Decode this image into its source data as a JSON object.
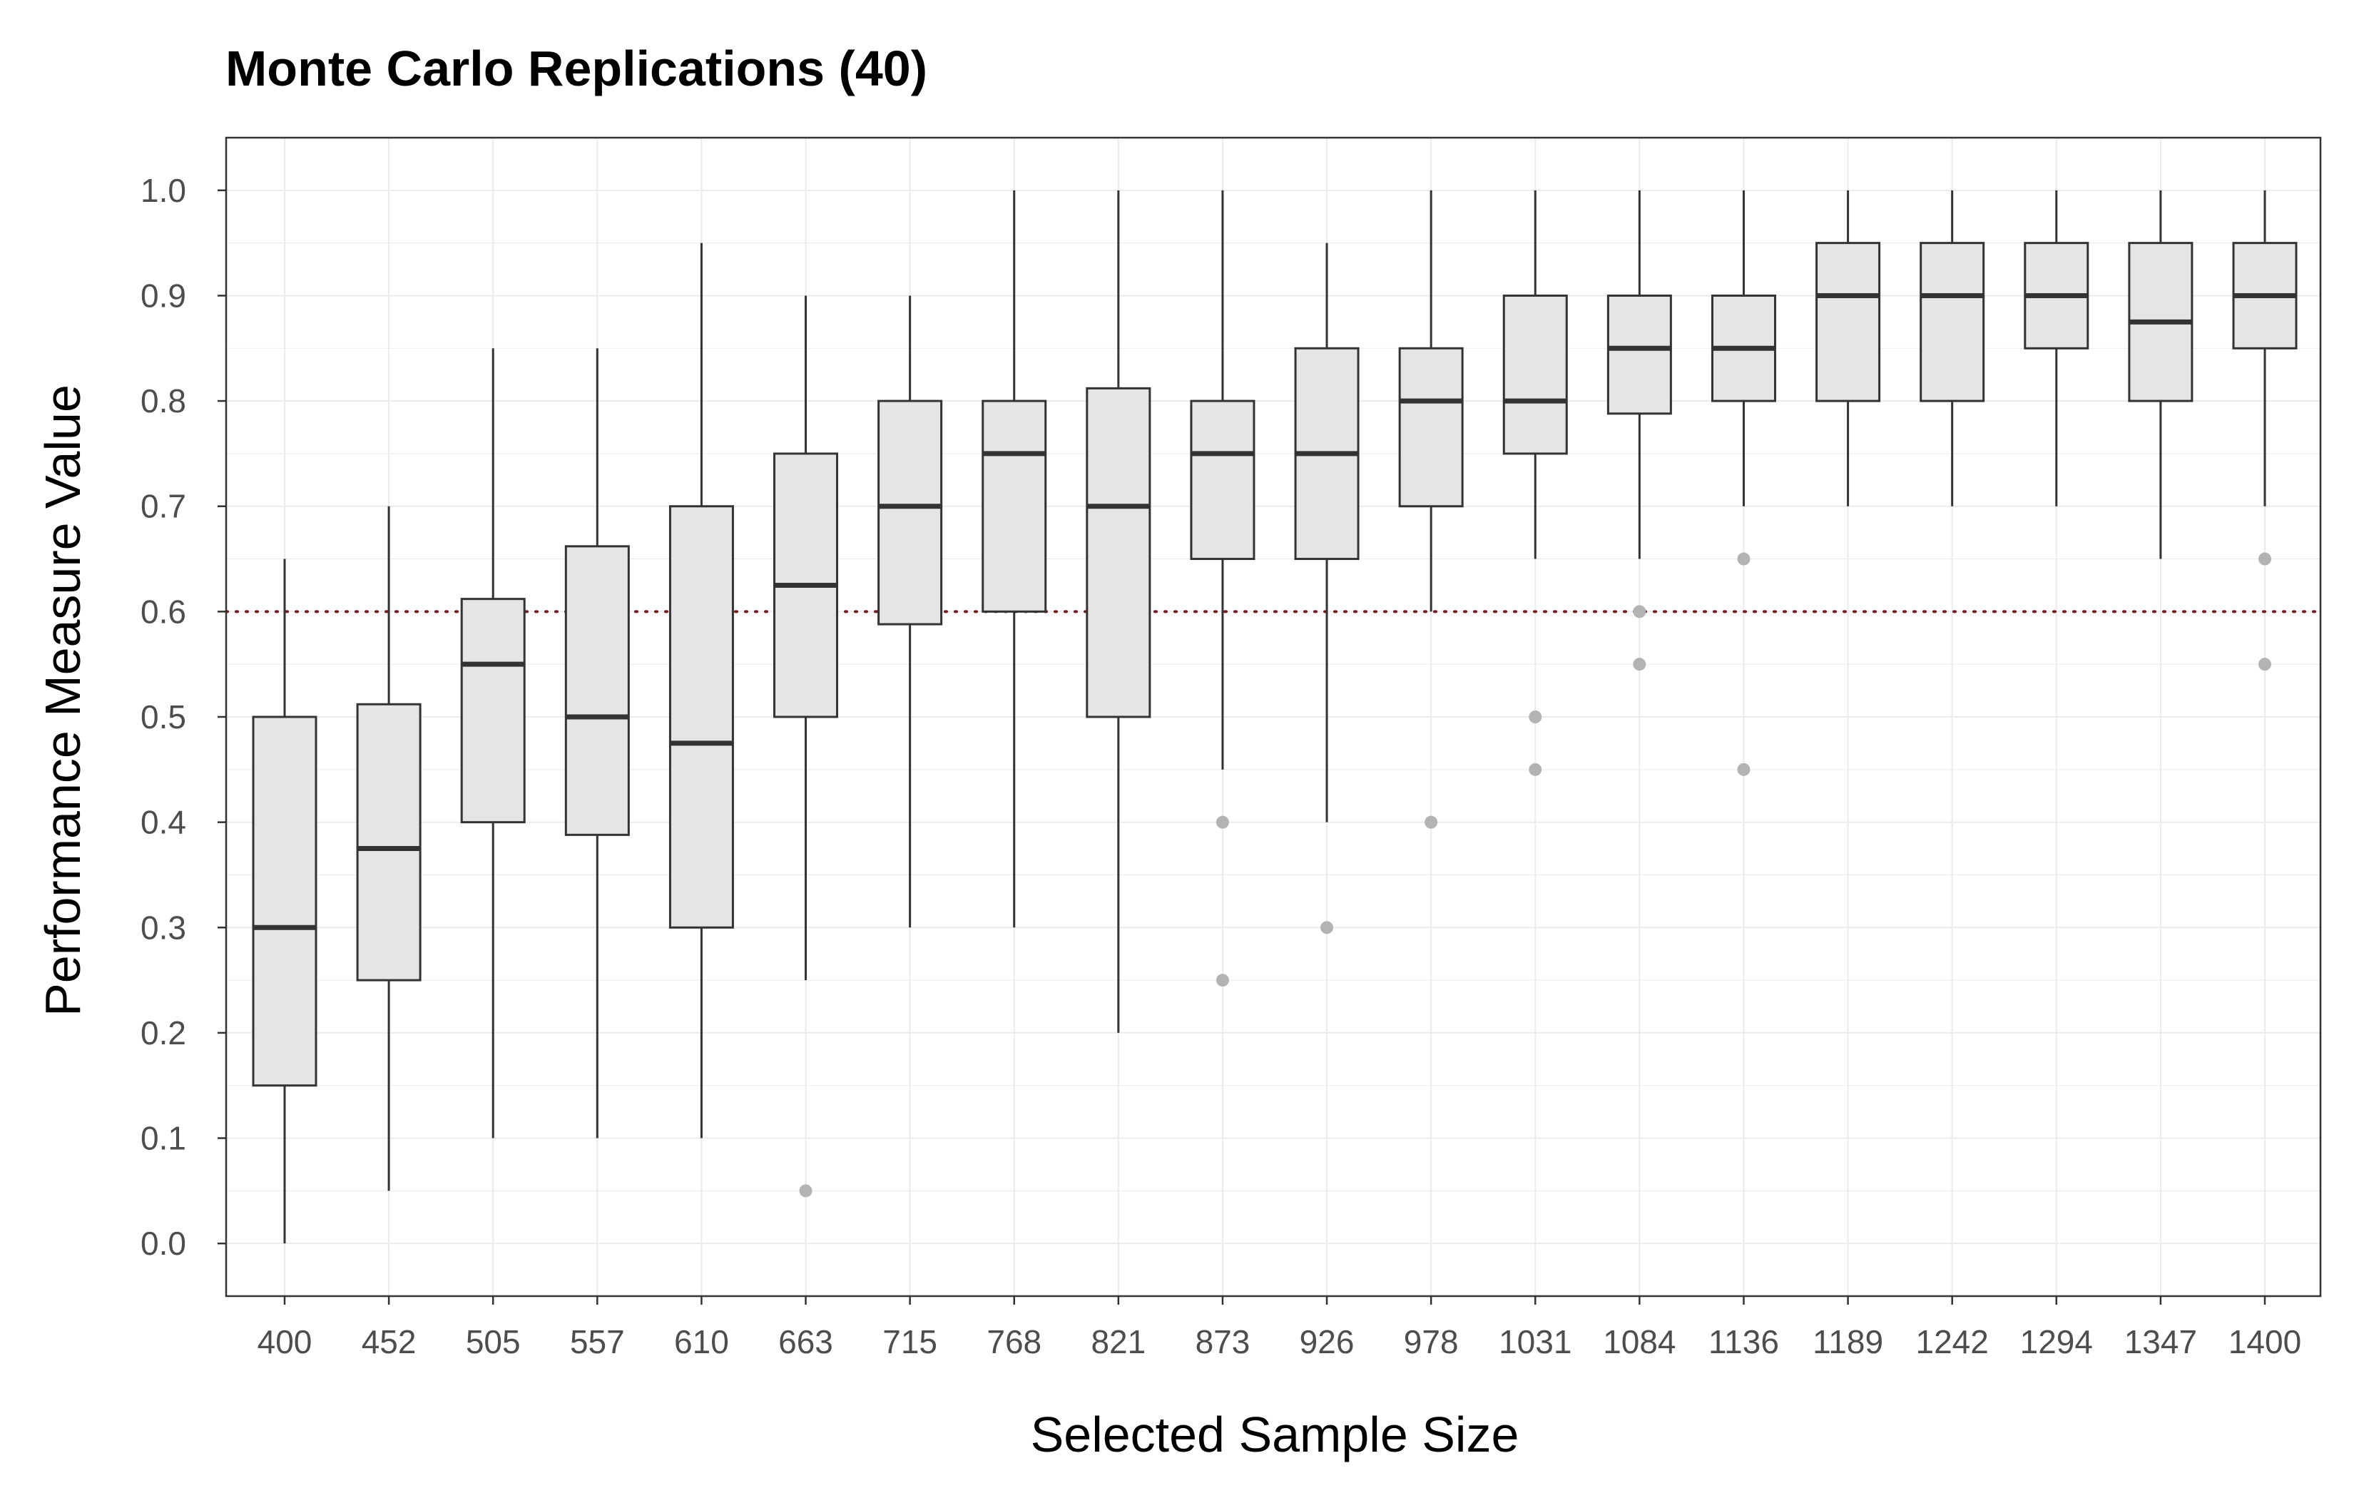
{
  "chart_data": {
    "type": "boxplot",
    "title": "Monte Carlo Replications (40)",
    "xlabel": "Selected Sample Size",
    "ylabel": "Performance Measure Value",
    "ylim": [
      -0.05,
      1.05
    ],
    "yticks": [
      "0.0",
      "0.1",
      "0.2",
      "0.3",
      "0.4",
      "0.5",
      "0.6",
      "0.7",
      "0.8",
      "0.9",
      "1.0"
    ],
    "reference_line": {
      "y": 0.6,
      "style": "dotted",
      "color": "#7b1e24"
    },
    "colors": {
      "box_fill": "#e5e5e5",
      "box_stroke": "#333333",
      "outlier": "#b3b3b3",
      "grid": "#ebebeb",
      "panel_border": "#333333"
    },
    "grid": true,
    "categories": [
      "400",
      "452",
      "505",
      "557",
      "610",
      "663",
      "715",
      "768",
      "821",
      "873",
      "926",
      "978",
      "1031",
      "1084",
      "1136",
      "1189",
      "1242",
      "1294",
      "1347",
      "1400"
    ],
    "boxes": [
      {
        "lower_whisker": 0.0,
        "q1": 0.15,
        "median": 0.3,
        "q3": 0.5,
        "upper_whisker": 0.65,
        "outliers": []
      },
      {
        "lower_whisker": 0.05,
        "q1": 0.25,
        "median": 0.375,
        "q3": 0.512,
        "upper_whisker": 0.7,
        "outliers": []
      },
      {
        "lower_whisker": 0.1,
        "q1": 0.4,
        "median": 0.55,
        "q3": 0.612,
        "upper_whisker": 0.85,
        "outliers": []
      },
      {
        "lower_whisker": 0.1,
        "q1": 0.388,
        "median": 0.5,
        "q3": 0.662,
        "upper_whisker": 0.85,
        "outliers": []
      },
      {
        "lower_whisker": 0.1,
        "q1": 0.3,
        "median": 0.475,
        "q3": 0.7,
        "upper_whisker": 0.95,
        "outliers": []
      },
      {
        "lower_whisker": 0.25,
        "q1": 0.5,
        "median": 0.625,
        "q3": 0.75,
        "upper_whisker": 0.9,
        "outliers": [
          0.05
        ]
      },
      {
        "lower_whisker": 0.3,
        "q1": 0.588,
        "median": 0.7,
        "q3": 0.8,
        "upper_whisker": 0.9,
        "outliers": []
      },
      {
        "lower_whisker": 0.3,
        "q1": 0.6,
        "median": 0.75,
        "q3": 0.8,
        "upper_whisker": 1.0,
        "outliers": []
      },
      {
        "lower_whisker": 0.2,
        "q1": 0.5,
        "median": 0.7,
        "q3": 0.812,
        "upper_whisker": 1.0,
        "outliers": []
      },
      {
        "lower_whisker": 0.45,
        "q1": 0.65,
        "median": 0.75,
        "q3": 0.8,
        "upper_whisker": 1.0,
        "outliers": [
          0.4,
          0.25
        ]
      },
      {
        "lower_whisker": 0.4,
        "q1": 0.65,
        "median": 0.75,
        "q3": 0.85,
        "upper_whisker": 0.95,
        "outliers": [
          0.3
        ]
      },
      {
        "lower_whisker": 0.6,
        "q1": 0.7,
        "median": 0.8,
        "q3": 0.85,
        "upper_whisker": 1.0,
        "outliers": [
          0.4
        ]
      },
      {
        "lower_whisker": 0.65,
        "q1": 0.75,
        "median": 0.8,
        "q3": 0.9,
        "upper_whisker": 1.0,
        "outliers": [
          0.5,
          0.45
        ]
      },
      {
        "lower_whisker": 0.65,
        "q1": 0.788,
        "median": 0.85,
        "q3": 0.9,
        "upper_whisker": 1.0,
        "outliers": [
          0.6,
          0.55
        ]
      },
      {
        "lower_whisker": 0.7,
        "q1": 0.8,
        "median": 0.85,
        "q3": 0.9,
        "upper_whisker": 1.0,
        "outliers": [
          0.65,
          0.45
        ]
      },
      {
        "lower_whisker": 0.7,
        "q1": 0.8,
        "median": 0.9,
        "q3": 0.95,
        "upper_whisker": 1.0,
        "outliers": []
      },
      {
        "lower_whisker": 0.7,
        "q1": 0.8,
        "median": 0.9,
        "q3": 0.95,
        "upper_whisker": 1.0,
        "outliers": []
      },
      {
        "lower_whisker": 0.7,
        "q1": 0.85,
        "median": 0.9,
        "q3": 0.95,
        "upper_whisker": 1.0,
        "outliers": []
      },
      {
        "lower_whisker": 0.65,
        "q1": 0.8,
        "median": 0.875,
        "q3": 0.95,
        "upper_whisker": 1.0,
        "outliers": []
      },
      {
        "lower_whisker": 0.7,
        "q1": 0.85,
        "median": 0.9,
        "q3": 0.95,
        "upper_whisker": 1.0,
        "outliers": [
          0.65,
          0.55
        ]
      }
    ]
  }
}
